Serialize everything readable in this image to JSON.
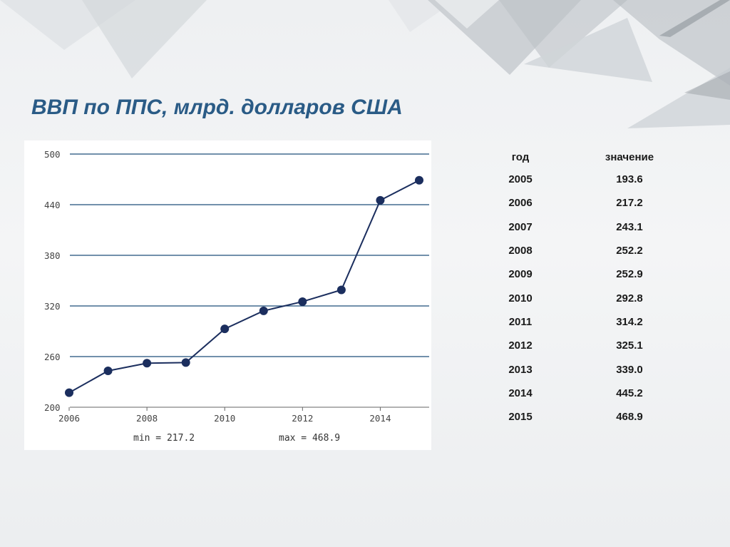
{
  "slide": {
    "title": "ВВП по ППС, млрд. долларов США"
  },
  "colors": {
    "title": "#2a5b86",
    "line": "#1b2e5e",
    "grid": "#1f4e79",
    "background": "#eef0f2"
  },
  "chart_data": {
    "type": "line",
    "title": "",
    "xlabel": "",
    "ylabel": "",
    "x": [
      2006,
      2007,
      2008,
      2009,
      2010,
      2011,
      2012,
      2013,
      2014,
      2015
    ],
    "values": [
      217.2,
      243.1,
      252.2,
      252.9,
      292.8,
      314.2,
      325.1,
      339.0,
      445.2,
      468.9
    ],
    "xlim": [
      2006,
      2015
    ],
    "ylim": [
      200,
      500
    ],
    "yticks": [
      200,
      260,
      320,
      380,
      440,
      500
    ],
    "xticks": [
      2006,
      2008,
      2010,
      2012,
      2014
    ],
    "grid": "horizontal",
    "stats": {
      "min": "min = 217.2",
      "max": "max = 468.9"
    }
  },
  "table": {
    "headers": {
      "year": "год",
      "value": "значение"
    },
    "rows": [
      {
        "year": "2005",
        "value": "193.6"
      },
      {
        "year": "2006",
        "value": "217.2"
      },
      {
        "year": "2007",
        "value": "243.1"
      },
      {
        "year": "2008",
        "value": "252.2"
      },
      {
        "year": "2009",
        "value": "252.9"
      },
      {
        "year": "2010",
        "value": "292.8"
      },
      {
        "year": "2011",
        "value": "314.2"
      },
      {
        "year": "2012",
        "value": "325.1"
      },
      {
        "year": "2013",
        "value": "339.0"
      },
      {
        "year": "2014",
        "value": "445.2"
      },
      {
        "year": "2015",
        "value": "468.9"
      }
    ]
  }
}
